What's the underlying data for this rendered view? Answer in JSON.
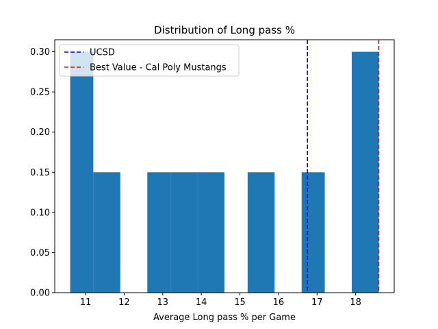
{
  "chart_data": {
    "type": "bar",
    "title": "Distribution of Long pass %",
    "xlabel": "Average Long pass % per Game",
    "ylabel": "",
    "xlim": [
      10.2,
      19.0
    ],
    "ylim": [
      0.0,
      0.315
    ],
    "x_ticks": [
      {
        "value": 11,
        "label": "11"
      },
      {
        "value": 12,
        "label": "12"
      },
      {
        "value": 13,
        "label": "13"
      },
      {
        "value": 14,
        "label": "14"
      },
      {
        "value": 15,
        "label": "15"
      },
      {
        "value": 16,
        "label": "16"
      },
      {
        "value": 17,
        "label": "17"
      },
      {
        "value": 18,
        "label": "18"
      }
    ],
    "y_ticks": [
      {
        "value": 0.0,
        "label": "0.00"
      },
      {
        "value": 0.05,
        "label": "0.05"
      },
      {
        "value": 0.1,
        "label": "0.10"
      },
      {
        "value": 0.15,
        "label": "0.15"
      },
      {
        "value": 0.2,
        "label": "0.20"
      },
      {
        "value": 0.25,
        "label": "0.25"
      },
      {
        "value": 0.3,
        "label": "0.30"
      }
    ],
    "bin_edges": [
      10.6,
      11.2,
      11.9,
      12.6,
      13.2,
      13.9,
      14.6,
      15.2,
      15.9,
      16.6,
      17.2,
      17.9,
      18.6
    ],
    "values": [
      0.3,
      0.15,
      0.0,
      0.15,
      0.15,
      0.15,
      0.0,
      0.15,
      0.0,
      0.15,
      0.0,
      0.3
    ],
    "bar_color": "#1f77b4",
    "reference_lines": [
      {
        "name": "UCSD",
        "x": 16.75,
        "color": "#0000ff",
        "style": "dashed"
      },
      {
        "name": "Best Value - Cal Poly Mustangs",
        "x": 18.6,
        "color": "#ff0000",
        "style": "dashed"
      }
    ],
    "legend": {
      "placement": "upper-left"
    },
    "grid": false
  }
}
